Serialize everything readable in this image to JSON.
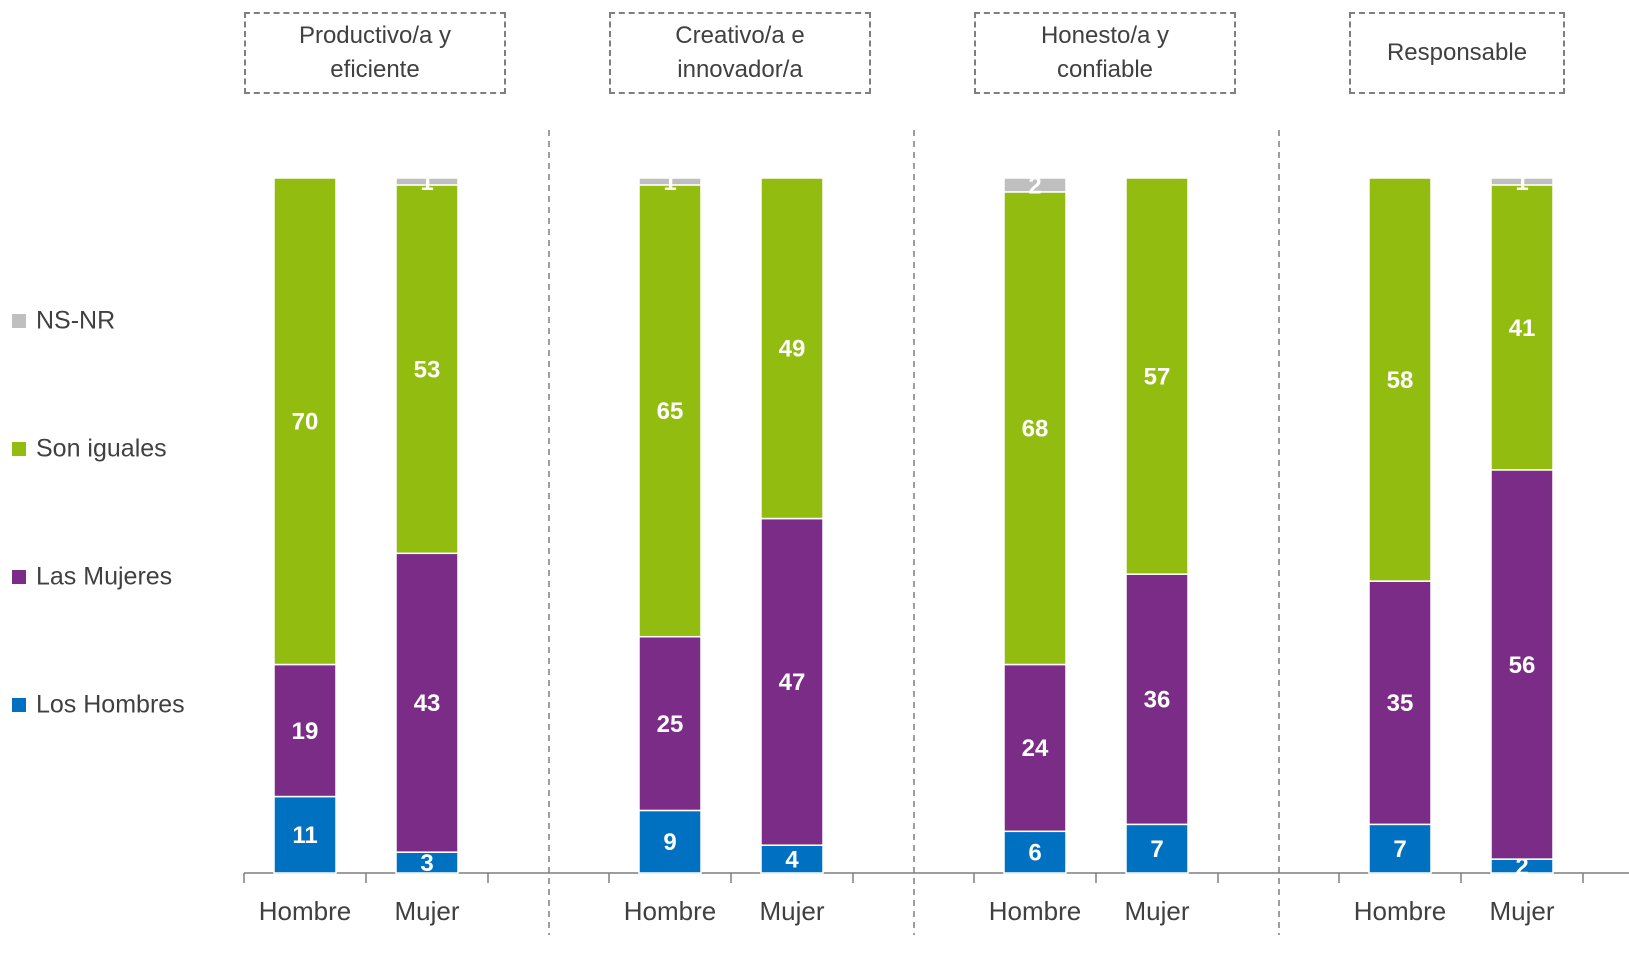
{
  "chart_data": {
    "type": "bar",
    "stacked": true,
    "groups": [
      "Productivo/a y eficiente",
      "Creativo/a e innovador/a",
      "Honesto/a y confiable",
      "Responsable"
    ],
    "categories": [
      "Hombre",
      "Mujer",
      "Hombre",
      "Mujer",
      "Hombre",
      "Mujer",
      "Hombre",
      "Mujer"
    ],
    "ylim": [
      0,
      100
    ],
    "series": [
      {
        "name": "Los Hombres",
        "color": "#0070c0",
        "values": [
          11,
          3,
          9,
          4,
          6,
          7,
          7,
          2
        ]
      },
      {
        "name": "Las Mujeres",
        "color": "#7b2c87",
        "values": [
          19,
          43,
          25,
          47,
          24,
          36,
          35,
          56
        ]
      },
      {
        "name": "Son iguales",
        "color": "#92bd10",
        "values": [
          70,
          53,
          65,
          49,
          68,
          57,
          58,
          41
        ]
      },
      {
        "name": "NS-NR",
        "color": "#bfbfbf",
        "values": [
          null,
          1,
          1,
          null,
          2,
          null,
          null,
          1
        ]
      }
    ]
  }
}
